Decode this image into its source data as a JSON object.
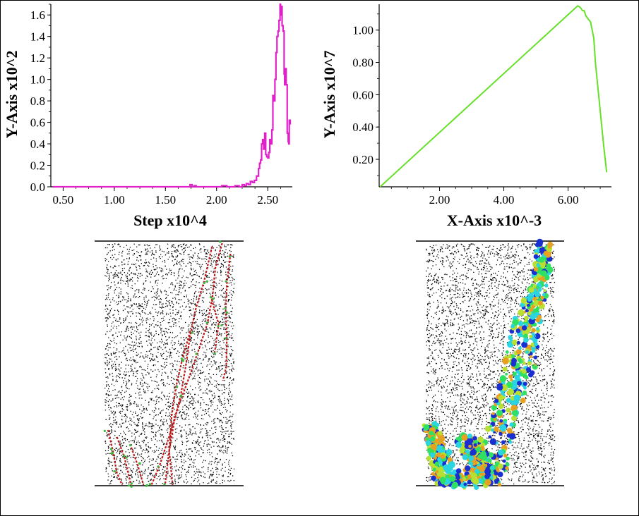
{
  "chart_data": [
    {
      "type": "line",
      "title": "",
      "xlabel": "Step x10^4",
      "ylabel": "Y-Axis x10^2",
      "xlim": [
        0.38,
        2.74
      ],
      "ylim": [
        0,
        1.7
      ],
      "xticks": [
        "0.50",
        "1.00",
        "1.50",
        "2.00",
        "2.50"
      ],
      "yticks": [
        "0.0",
        "0.2",
        "0.4",
        "0.6",
        "0.8",
        "1.0",
        "1.2",
        "1.4",
        "1.6"
      ],
      "grid": false,
      "series": [
        {
          "color": "#e020c8",
          "x": [
            0.4,
            1.7,
            1.74,
            1.76,
            1.78,
            1.8,
            2.0,
            2.05,
            2.1,
            2.18,
            2.22,
            2.25,
            2.27,
            2.29,
            2.31,
            2.33,
            2.35,
            2.37,
            2.39,
            2.41,
            2.42,
            2.43,
            2.44,
            2.45,
            2.46,
            2.47,
            2.48,
            2.49,
            2.5,
            2.51,
            2.52,
            2.53,
            2.54,
            2.55,
            2.56,
            2.57,
            2.58,
            2.59,
            2.6,
            2.61,
            2.62,
            2.625,
            2.63,
            2.64,
            2.65,
            2.66,
            2.665,
            2.67,
            2.68,
            2.69,
            2.7,
            2.705,
            2.71,
            2.72
          ],
          "y": [
            0.0,
            0.0,
            0.02,
            0.0,
            0.01,
            0.0,
            0.0,
            0.01,
            0.0,
            0.01,
            0.0,
            0.02,
            0.01,
            0.03,
            0.02,
            0.05,
            0.04,
            0.06,
            0.1,
            0.17,
            0.22,
            0.25,
            0.4,
            0.44,
            0.35,
            0.5,
            0.3,
            0.28,
            0.27,
            0.32,
            0.44,
            0.4,
            0.53,
            0.85,
            0.8,
            1.0,
            1.25,
            1.4,
            1.45,
            1.55,
            1.7,
            1.6,
            1.68,
            1.5,
            1.45,
            1.05,
            0.95,
            1.1,
            0.95,
            0.5,
            0.42,
            0.4,
            0.62,
            0.58
          ]
        }
      ]
    },
    {
      "type": "line",
      "title": "",
      "xlabel": "X-Axis x10^-3",
      "ylabel": "Y-Axis x10^7",
      "xlim": [
        0.12,
        7.35
      ],
      "ylim": [
        0.03,
        1.16
      ],
      "xticks": [
        "2.00",
        "4.00",
        "6.00"
      ],
      "yticks": [
        "0.20",
        "0.40",
        "0.60",
        "0.80",
        "1.00"
      ],
      "grid": false,
      "series": [
        {
          "color": "#66e028",
          "x": [
            0.15,
            6.3,
            6.38,
            6.45,
            6.5,
            6.55,
            6.62,
            6.7,
            6.75,
            6.8,
            6.85,
            6.9,
            7.0,
            7.1,
            7.2
          ],
          "y": [
            0.03,
            1.15,
            1.14,
            1.12,
            1.12,
            1.09,
            1.07,
            1.05,
            1.0,
            0.95,
            0.8,
            0.7,
            0.5,
            0.3,
            0.12
          ]
        }
      ]
    }
  ],
  "images": [
    {
      "name": "crack-pattern-left",
      "dot_color": "#000000",
      "crack_colors": [
        "#c01818",
        "#3cb83c"
      ]
    },
    {
      "name": "damage-map-right",
      "dot_color": "#000000",
      "damage_colors": [
        "#1a2fd0",
        "#2ad4e0",
        "#30e060",
        "#b8e030",
        "#e8a020"
      ]
    }
  ]
}
